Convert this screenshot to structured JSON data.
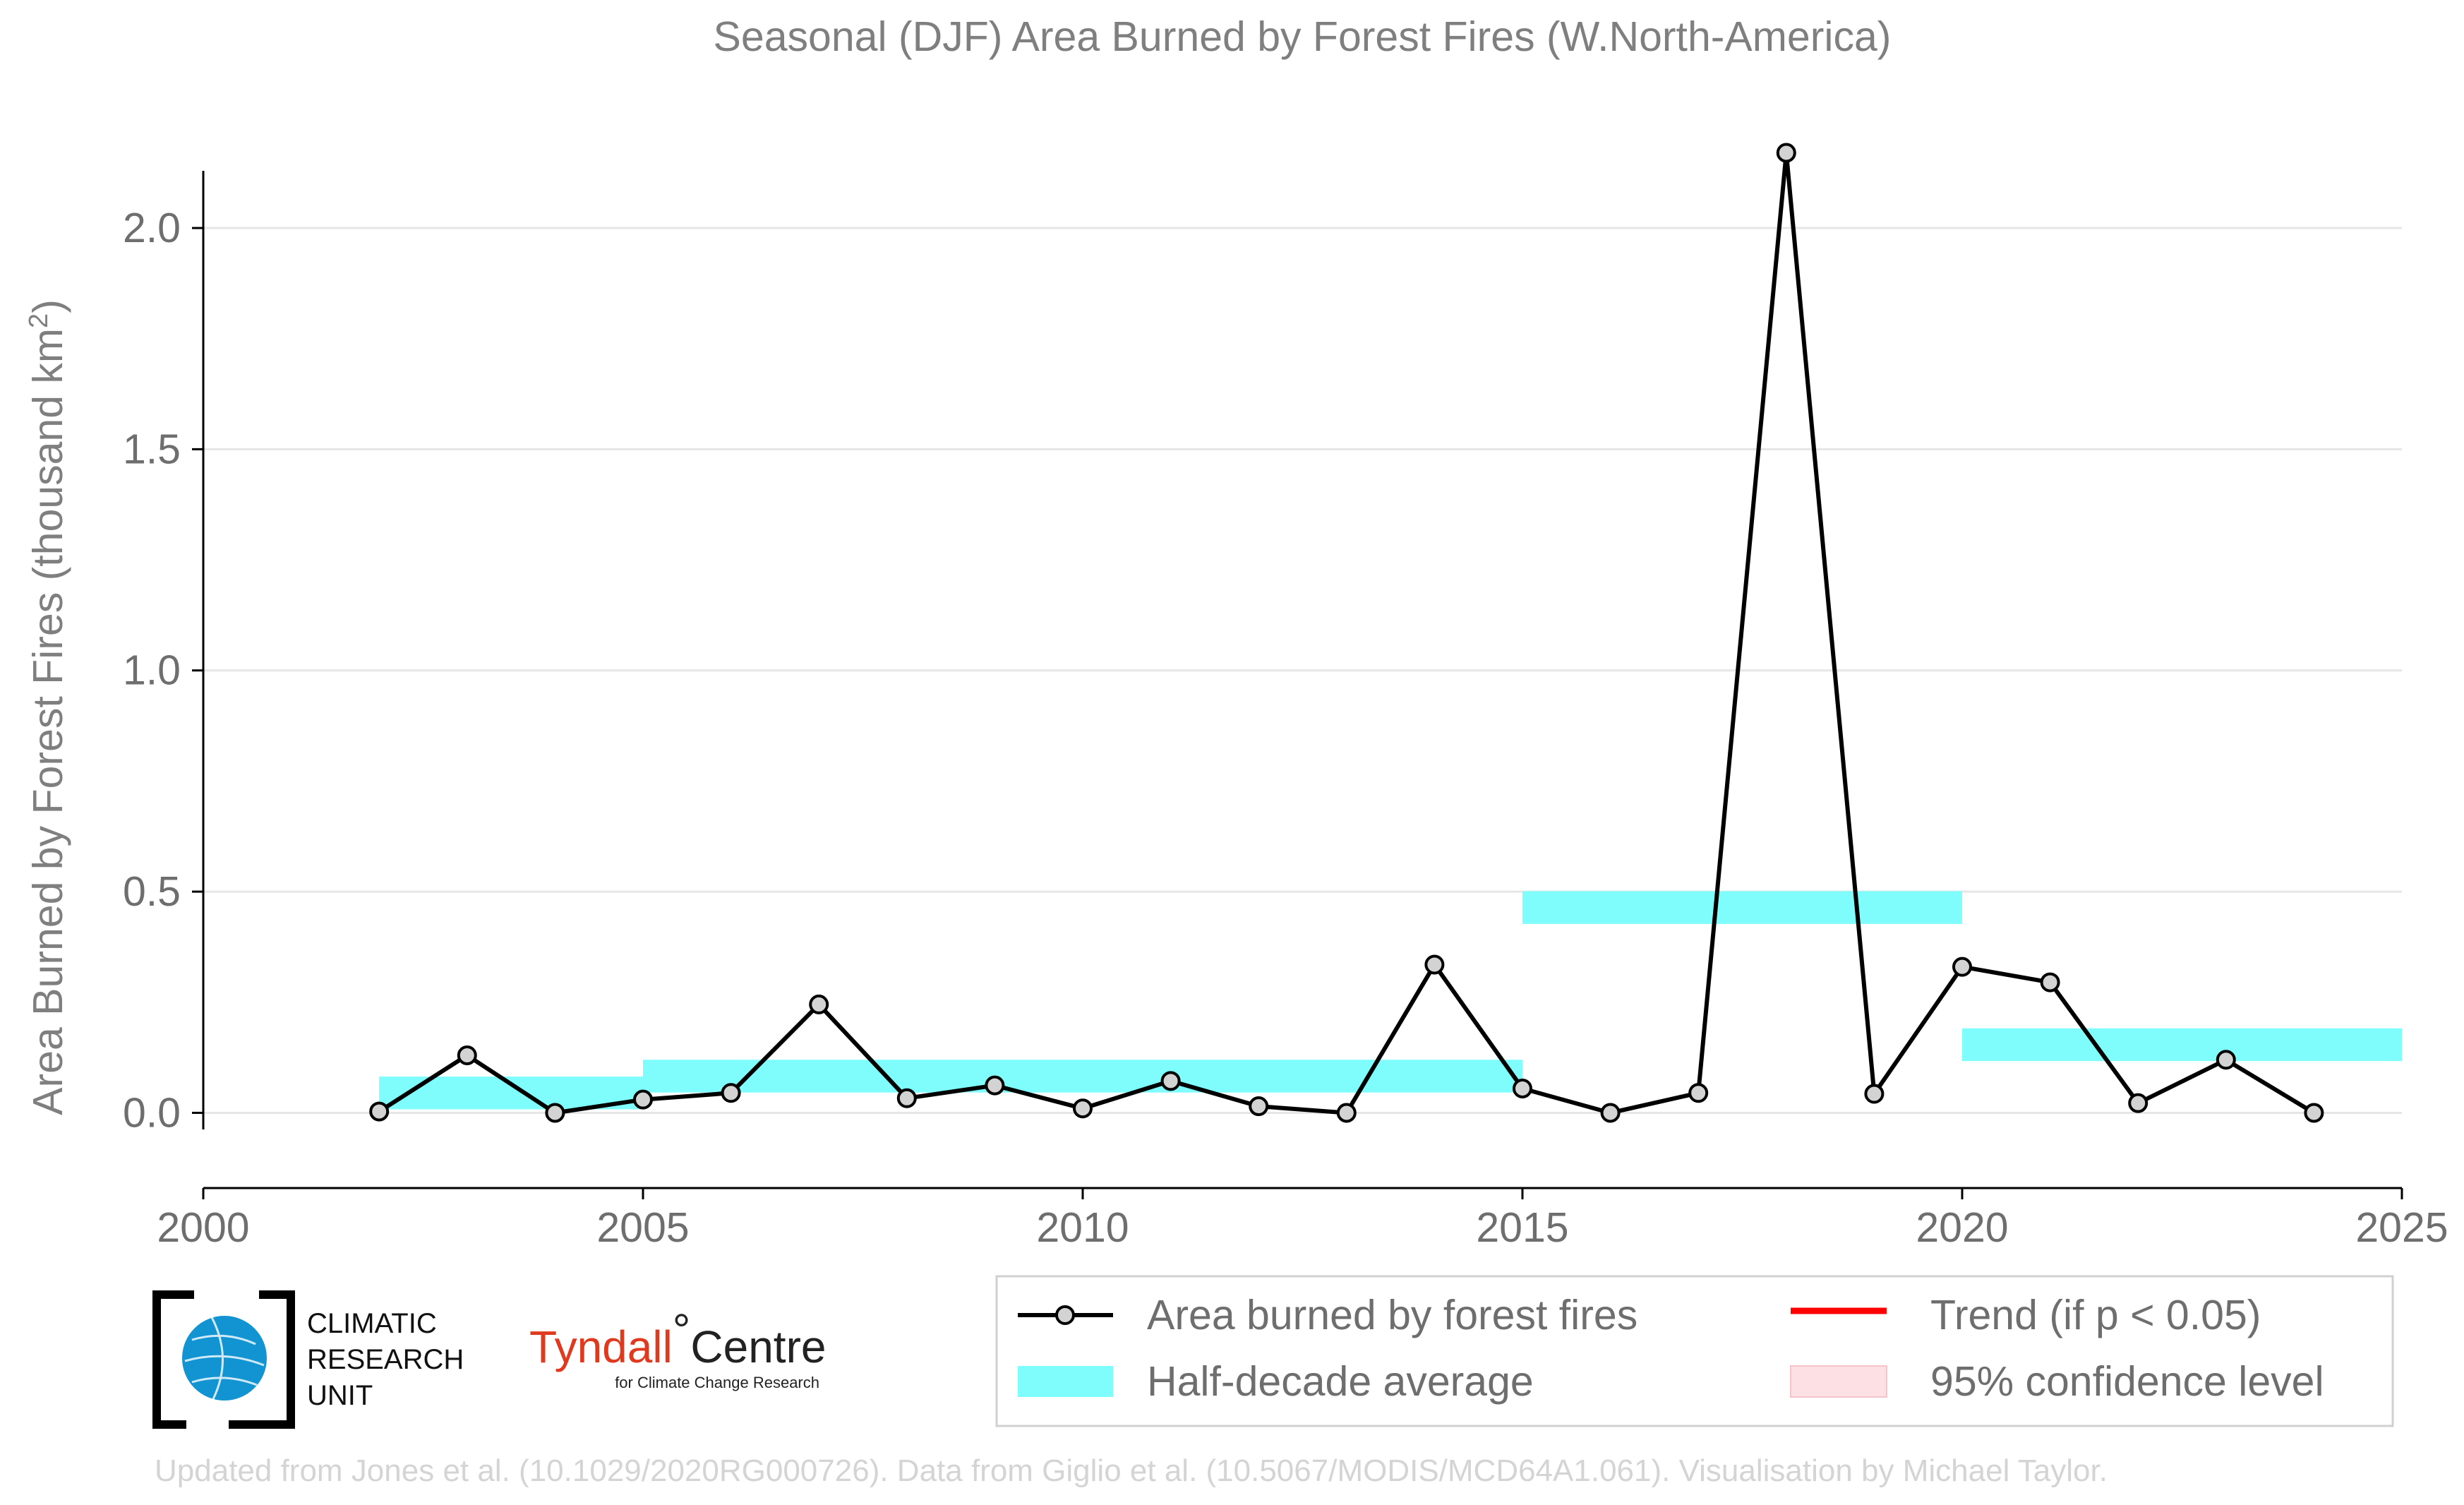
{
  "chart_data": {
    "type": "line",
    "title": "Seasonal (DJF) Area Burned by Forest Fires (W.North-America)",
    "ylabel": "Area Burned by Forest Fires (thousand km",
    "ylabel_sup": "2",
    "ylabel_close": ")",
    "xlabel": "",
    "xlim": [
      2000,
      2025
    ],
    "ylim": [
      -0.17,
      2.3
    ],
    "x_ticks": [
      "2000",
      "2005",
      "2010",
      "2015",
      "2020",
      "2025"
    ],
    "y_ticks": [
      "0.0",
      "0.5",
      "1.0",
      "1.5",
      "2.0"
    ],
    "grid": "horizontal",
    "series": [
      {
        "name": "Area burned by forest fires",
        "color": "#000000",
        "x": [
          2002,
          2003,
          2004,
          2005,
          2006,
          2007,
          2008,
          2009,
          2010,
          2011,
          2012,
          2013,
          2014,
          2015,
          2016,
          2017,
          2018,
          2019,
          2020,
          2021,
          2022,
          2023,
          2024
        ],
        "y": [
          0.003,
          0.13,
          0.0,
          0.03,
          0.045,
          0.245,
          0.033,
          0.062,
          0.01,
          0.072,
          0.015,
          0.0,
          0.335,
          0.055,
          0.0,
          0.045,
          2.17,
          0.043,
          0.33,
          0.295,
          0.022,
          0.12,
          0.0
        ]
      }
    ],
    "half_decade_average": {
      "name": "Half-decade average",
      "color": "#7ffcfc",
      "periods": [
        {
          "start": 2002,
          "end": 2005,
          "value": 0.045
        },
        {
          "start": 2005,
          "end": 2010,
          "value": 0.083
        },
        {
          "start": 2010,
          "end": 2015,
          "value": 0.083
        },
        {
          "start": 2015,
          "end": 2020,
          "value": 0.464
        },
        {
          "start": 2020,
          "end": 2025,
          "value": 0.154
        }
      ]
    },
    "legend": {
      "placement": "bottom-right",
      "items": [
        {
          "label": "Area burned by forest fires",
          "kind": "line-marker",
          "color": "#000000"
        },
        {
          "label": "Trend (if p < 0.05)",
          "kind": "line",
          "color": "#ff0000"
        },
        {
          "label": "Half-decade average",
          "kind": "band",
          "color": "#7ffcfc"
        },
        {
          "label": "95% confidence level",
          "kind": "box",
          "color": "#fde0e4"
        }
      ]
    }
  },
  "logos": {
    "cru_lines": [
      "CLIMATIC",
      "RESEARCH",
      "UNIT"
    ],
    "tyndall_main": "Tyndall",
    "tyndall_degree": "°",
    "tyndall_centre": "Centre",
    "tyndall_sub": "for Climate Change Research"
  },
  "credit": "Updated from Jones et al. (10.1029/2020RG000726). Data from Giglio et al. (10.5067/MODIS/MCD64A1.061). Visualisation by Michael Taylor."
}
